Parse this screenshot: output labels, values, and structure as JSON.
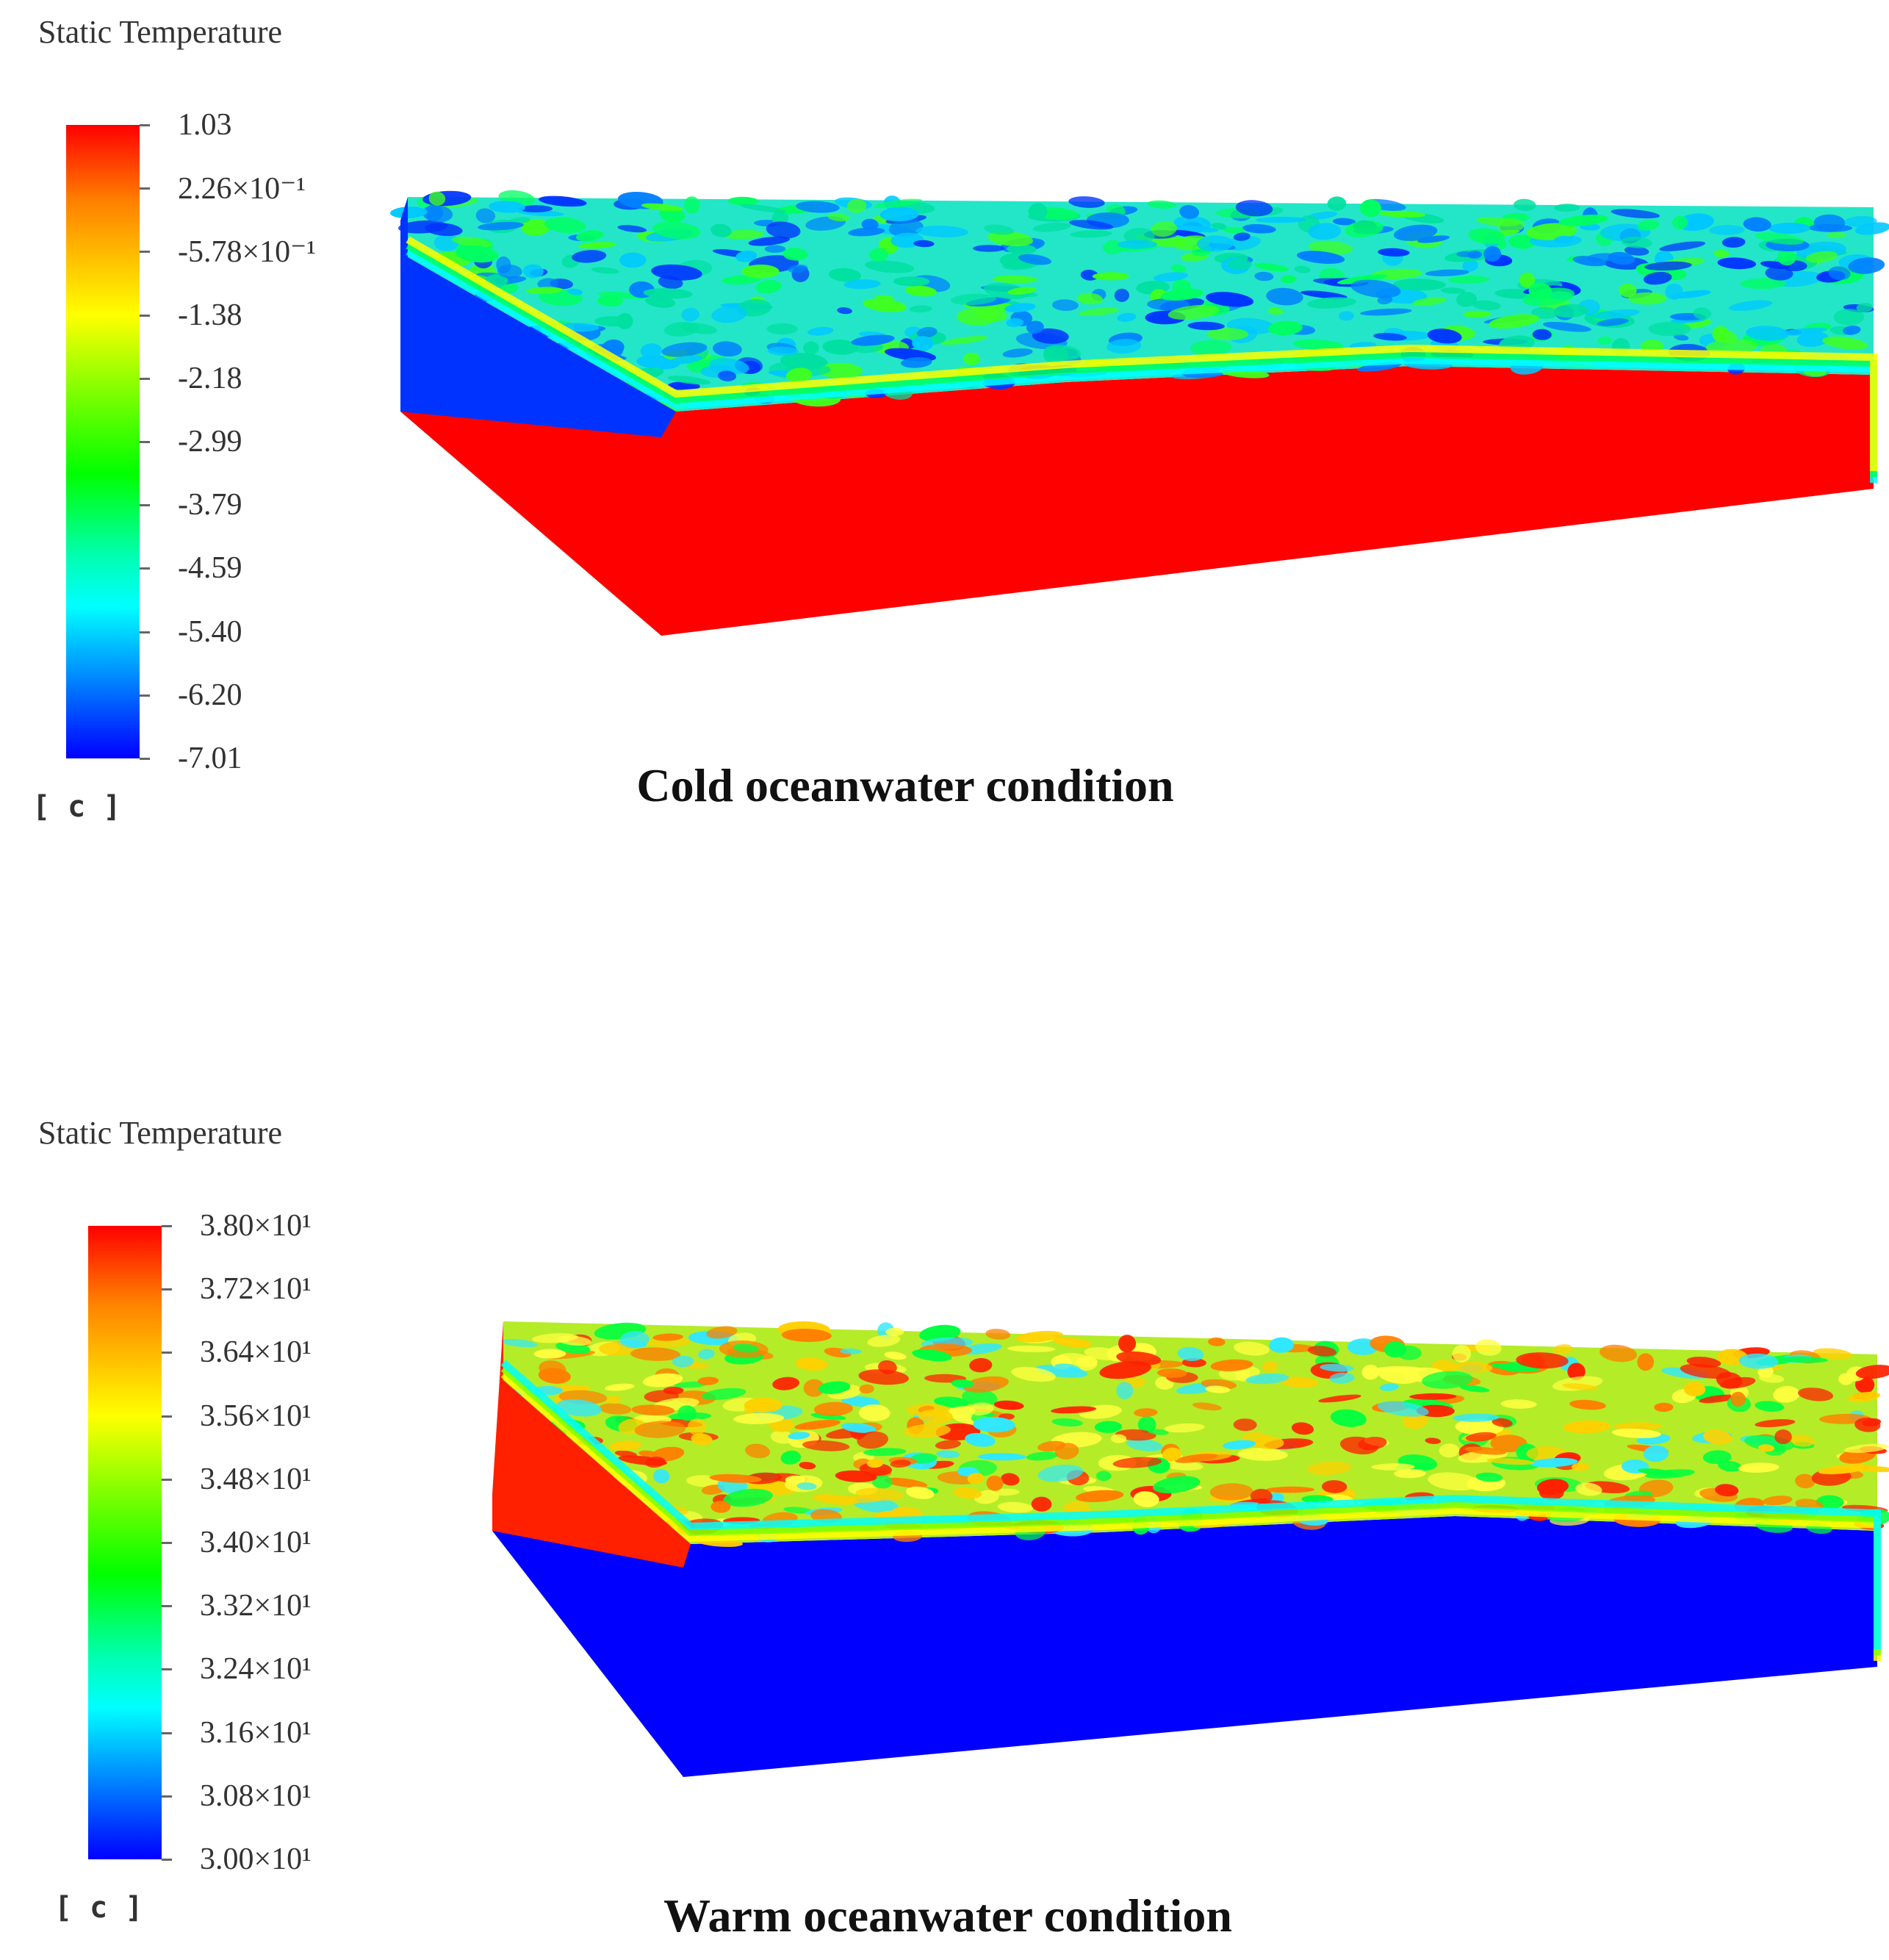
{
  "panels": [
    {
      "id": "cold",
      "legend": {
        "title": "Static Temperature",
        "unit": "[ c ]",
        "ticks": [
          "1.03",
          "2.26×10⁻¹",
          "-5.78×10⁻¹",
          "-1.38",
          "-2.18",
          "-2.99",
          "-3.79",
          "-4.59",
          "-5.40",
          "-6.20",
          "-7.01"
        ]
      },
      "caption": "Cold oceanwater condition",
      "surface_colors": {
        "side": "#ff0000",
        "top_base": "#23e6c8"
      }
    },
    {
      "id": "warm",
      "legend": {
        "title": "Static Temperature",
        "unit": "[ c ]",
        "ticks": [
          "3.80×10¹",
          "3.72×10¹",
          "3.64×10¹",
          "3.56×10¹",
          "3.48×10¹",
          "3.40×10¹",
          "3.32×10¹",
          "3.24×10¹",
          "3.16×10¹",
          "3.08×10¹",
          "3.00×10¹"
        ]
      },
      "caption": "Warm oceanwater condition",
      "surface_colors": {
        "side": "#0000ff",
        "top_base": "#b4ec28"
      }
    }
  ]
}
